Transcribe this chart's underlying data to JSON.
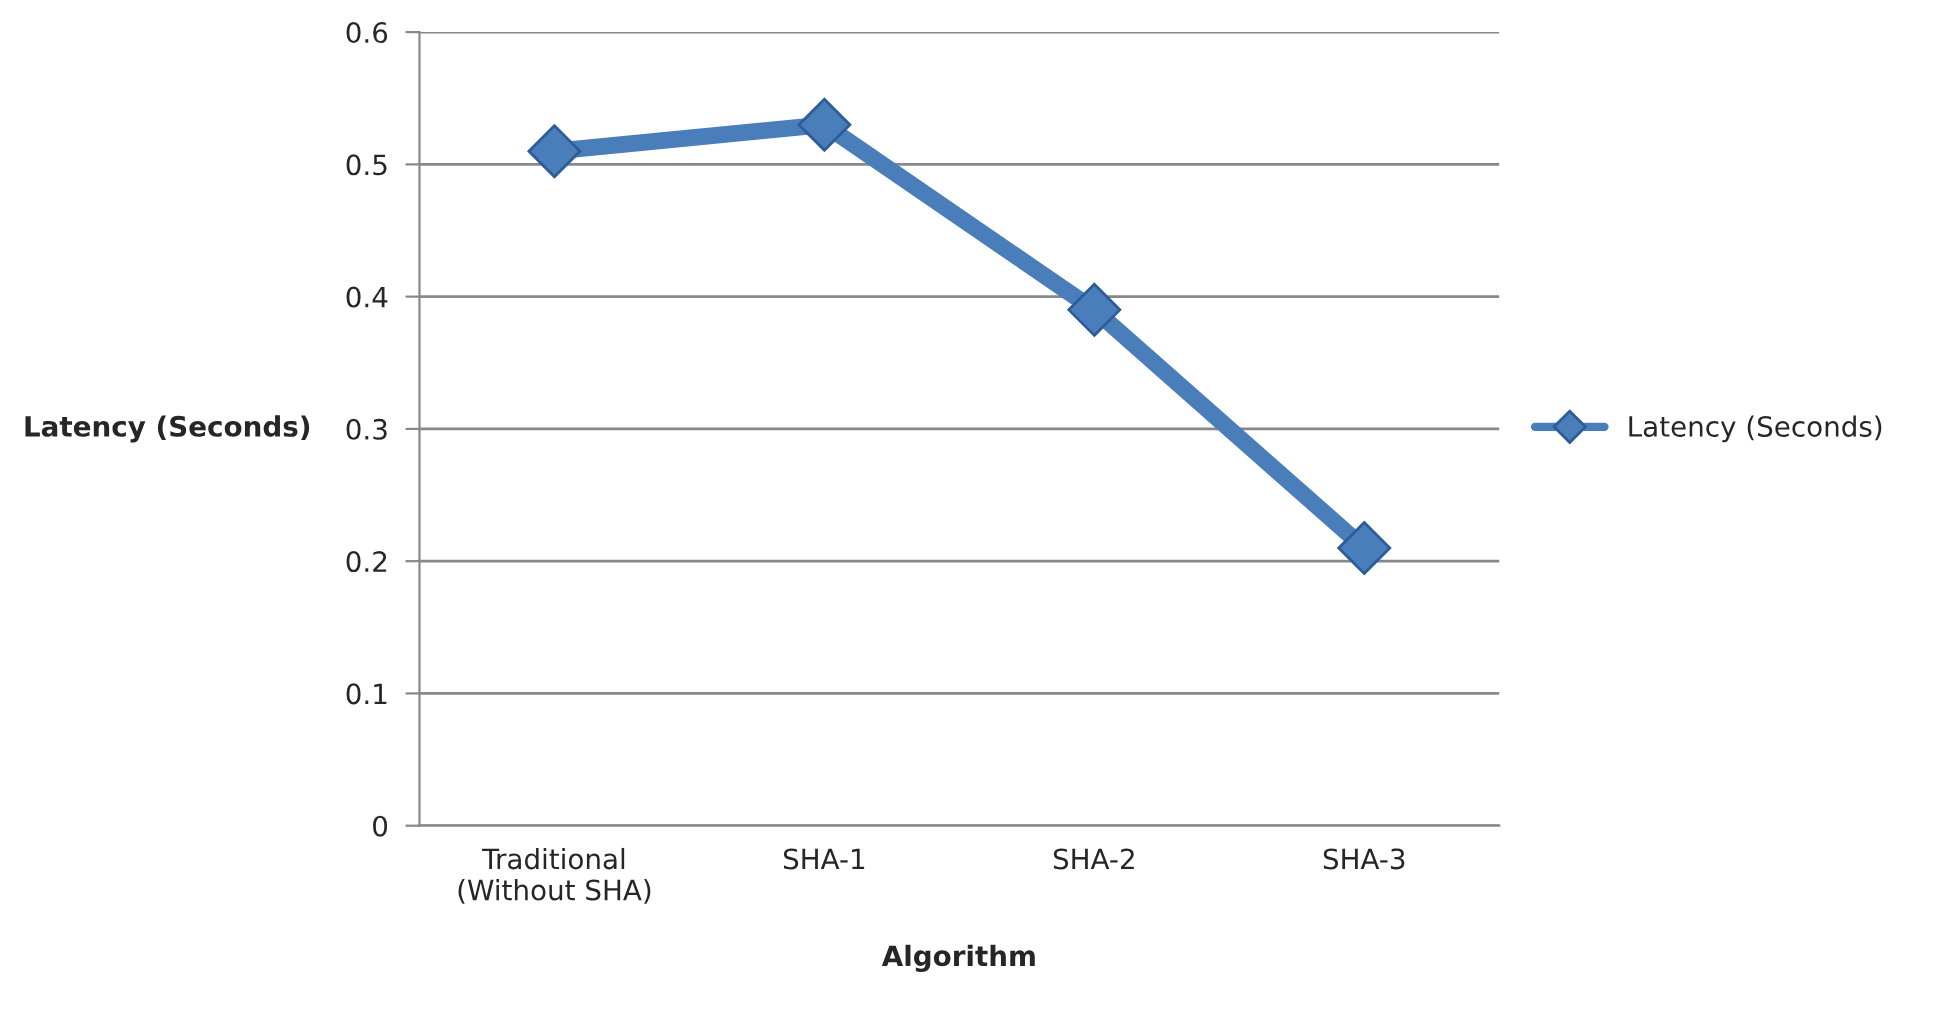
{
  "chart_data": {
    "type": "line",
    "xlabel": "Algorithm",
    "ylabel": "Latency (Seconds)",
    "categories": [
      "Traditional\n(Without SHA)",
      "SHA-1",
      "SHA-2",
      "SHA-3"
    ],
    "series": [
      {
        "name": "Latency (Seconds)",
        "color": "#4a7ebb",
        "values": [
          0.51,
          0.53,
          0.39,
          0.21
        ]
      }
    ],
    "ylim": [
      0,
      0.6
    ],
    "yticks": [
      0,
      0.1,
      0.2,
      0.3,
      0.4,
      0.5,
      0.6
    ],
    "grid": "y",
    "legend": "right",
    "marker": "diamond",
    "line_style": "solid"
  }
}
